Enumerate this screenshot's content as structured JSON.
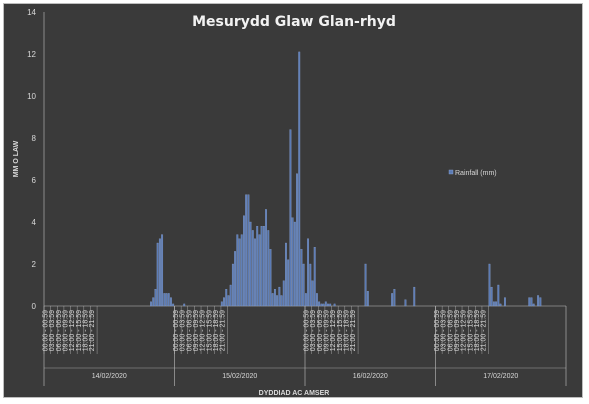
{
  "chart_data": {
    "type": "bar",
    "title": "Mesurydd Glaw Glan-rhyd",
    "xlabel": "DYDDIAD AC AMSER",
    "ylabel": "MM O LAW",
    "ylim": [
      0,
      14
    ],
    "yticks": [
      0,
      2,
      4,
      6,
      8,
      10,
      12,
      14
    ],
    "grid": false,
    "legend_position": "right",
    "colors": {
      "bar": "#5b7bb5",
      "background": "#3a3a3a",
      "text": "#d9d9d9",
      "axis": "#bfbfbf"
    },
    "days": [
      "14/02/2020",
      "15/02/2020",
      "16/02/2020",
      "17/02/2020"
    ],
    "time_labels": [
      "00:00 - 00:59",
      "03:00 - 03:59",
      "06:00 - 06:59",
      "09:00 - 09:59",
      "12:00 - 12:59",
      "15:00 - 15:59",
      "18:00 - 18:59",
      "21:00 - 21:59"
    ],
    "series": [
      {
        "name": "Rainfall (mm)",
        "values": [
          0,
          0,
          0,
          0,
          0,
          0,
          0,
          0,
          0,
          0,
          0,
          0,
          0,
          0,
          0,
          0,
          0,
          0,
          0,
          0,
          0,
          0,
          0,
          0,
          0,
          0,
          0,
          0,
          0,
          0,
          0,
          0,
          0,
          0,
          0,
          0,
          0,
          0,
          0,
          0,
          0,
          0,
          0,
          0,
          0,
          0,
          0,
          0,
          0.2,
          0.4,
          0.8,
          3.0,
          3.2,
          3.4,
          0.6,
          0.6,
          0.6,
          0.4,
          0.1,
          0,
          0,
          0,
          0,
          0.1,
          0,
          0,
          0,
          0,
          0,
          0,
          0,
          0,
          0,
          0,
          0,
          0,
          0,
          0,
          0,
          0,
          0.2,
          0.4,
          0.8,
          0.5,
          1.0,
          2.0,
          2.6,
          3.4,
          3.2,
          3.4,
          4.3,
          5.3,
          5.3,
          4.0,
          3.6,
          3.2,
          3.8,
          3.4,
          3.8,
          3.8,
          4.6,
          3.6,
          2.7,
          0.6,
          0.8,
          0.5,
          0.9,
          0.5,
          1.2,
          3.0,
          2.2,
          8.4,
          4.2,
          4.0,
          6.3,
          12.1,
          2.7,
          2.0,
          0.6,
          3.2,
          2.0,
          1.2,
          2.8,
          0.6,
          0.2,
          0.1,
          0.1,
          0.2,
          0.1,
          0.1,
          0,
          0.1,
          0,
          0,
          0,
          0,
          0,
          0,
          0,
          0,
          0,
          0,
          0,
          0,
          0,
          2.0,
          0.7,
          0,
          0,
          0,
          0,
          0,
          0,
          0,
          0,
          0,
          0,
          0.6,
          0.8,
          0,
          0,
          0,
          0,
          0.3,
          0,
          0,
          0,
          0.9,
          0,
          0,
          0,
          0,
          0,
          0,
          0,
          0,
          0,
          0,
          0,
          0,
          0,
          0,
          0,
          0,
          0,
          0,
          0,
          0,
          0,
          0,
          0,
          0,
          0,
          0,
          0,
          0,
          0,
          0,
          0,
          0,
          0,
          2.0,
          0.9,
          0.2,
          0.2,
          1.0,
          0.1,
          0,
          0.4,
          0,
          0,
          0,
          0,
          0,
          0,
          0,
          0,
          0,
          0,
          0.4,
          0.4,
          0.1,
          0,
          0.5,
          0.4,
          0,
          0,
          0,
          0,
          0,
          0,
          0,
          0,
          0,
          0,
          0
        ]
      }
    ]
  }
}
